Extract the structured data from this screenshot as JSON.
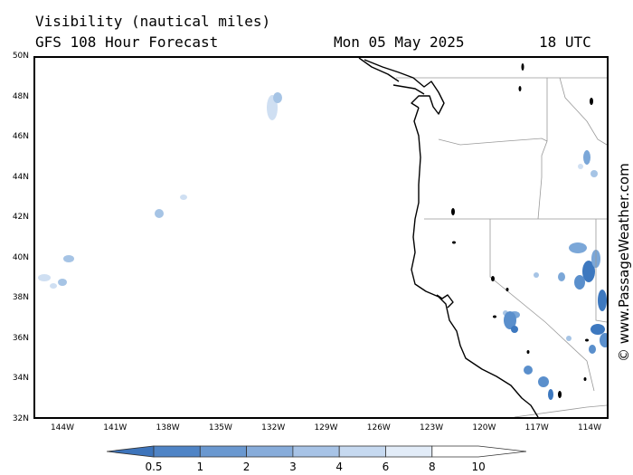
{
  "header": {
    "title": "Visibility (nautical miles)",
    "subtitle": "GFS 108 Hour Forecast",
    "date": "Mon 05 May 2025",
    "time": "18 UTC"
  },
  "map": {
    "lat_labels": [
      "50N",
      "48N",
      "46N",
      "44N",
      "42N",
      "40N",
      "38N",
      "36N",
      "34N",
      "32N"
    ],
    "lon_labels": [
      "144W",
      "141W",
      "138W",
      "135W",
      "132W",
      "129W",
      "126W",
      "123W",
      "120W",
      "117W",
      "114W"
    ],
    "land_color": "#ffffff",
    "coast_color": "#000000",
    "border_color": "#999999",
    "fog_colors": [
      "#3d78bf",
      "#5a8fcc",
      "#7ba7d8",
      "#a6c4e5",
      "#cfdff2"
    ]
  },
  "credit": "© www.PassageWeather.com",
  "legend": {
    "labels": [
      "0.5",
      "1",
      "2",
      "3",
      "4",
      "6",
      "8",
      "10"
    ],
    "colors": [
      "#3d74bb",
      "#4f84c6",
      "#6a98d0",
      "#87acda",
      "#a7c3e6",
      "#c6d9f0",
      "#e2ecf8",
      "#ffffff"
    ]
  }
}
